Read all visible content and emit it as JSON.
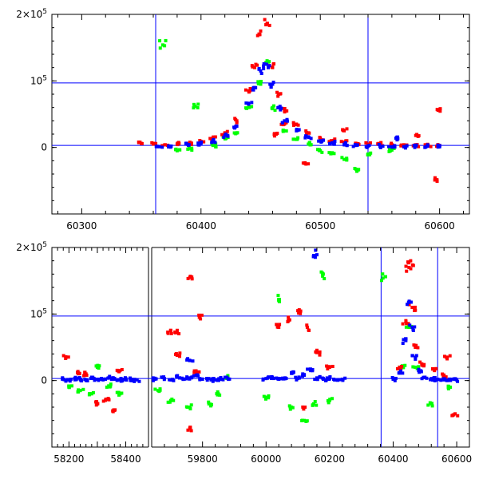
{
  "chart_data": [
    {
      "type": "scatter",
      "panel": "top",
      "xlim": [
        60275,
        60625
      ],
      "ylim": [
        -100000,
        200000
      ],
      "x_ticks": [
        60300,
        60400,
        60500,
        60600
      ],
      "x_tick_labels": [
        "60300",
        "60400",
        "60500",
        "60600"
      ],
      "y_tick_labels": [
        {
          "value": 0,
          "base": "0",
          "exp": ""
        },
        {
          "value": 100000,
          "base": "10",
          "exp": "5"
        },
        {
          "value": 200000,
          "base": "2×10",
          "exp": "5"
        }
      ],
      "vlines": [
        60362,
        60540
      ],
      "hlines": [
        3000,
        97000
      ],
      "peak_x": 60452,
      "series_colors": {
        "red": "#ff0000",
        "green": "#00ff00",
        "blue": "#0000ff"
      },
      "series": [
        {
          "color": "red",
          "points": [
            [
              60350,
              6000
            ],
            [
              60360,
              5000
            ],
            [
              60370,
              4000
            ],
            [
              60380,
              5000
            ],
            [
              60390,
              6000
            ],
            [
              60400,
              9000
            ],
            [
              60410,
              14000
            ],
            [
              60420,
              22000
            ],
            [
              60430,
              40000
            ],
            [
              60440,
              85000
            ],
            [
              60445,
              120000
            ],
            [
              60450,
              175000
            ],
            [
              60455,
              185000
            ],
            [
              60460,
              120000
            ],
            [
              60465,
              80000
            ],
            [
              60470,
              55000
            ],
            [
              60480,
              35000
            ],
            [
              60490,
              22000
            ],
            [
              60500,
              14000
            ],
            [
              60510,
              10000
            ],
            [
              60520,
              8000
            ],
            [
              60530,
              6000
            ],
            [
              60540,
              5000
            ],
            [
              60550,
              5000
            ],
            [
              60560,
              4000
            ],
            [
              60570,
              4000
            ],
            [
              60580,
              3000
            ],
            [
              60590,
              3000
            ],
            [
              60600,
              3000
            ],
            [
              60463,
              20000
            ],
            [
              60470,
              35000
            ],
            [
              60520,
              25000
            ],
            [
              60580,
              18000
            ],
            [
              60598,
              57000
            ],
            [
              60596,
              -49000
            ],
            [
              60488,
              -25000
            ]
          ]
        },
        {
          "color": "green",
          "points": [
            [
              60368,
              154000
            ],
            [
              60395,
              62000
            ],
            [
              60380,
              -5000
            ],
            [
              60390,
              -2000
            ],
            [
              60410,
              3000
            ],
            [
              60420,
              14000
            ],
            [
              60430,
              22000
            ],
            [
              60440,
              60000
            ],
            [
              60450,
              95000
            ],
            [
              60455,
              125000
            ],
            [
              60460,
              60000
            ],
            [
              60470,
              25000
            ],
            [
              60480,
              12000
            ],
            [
              60490,
              5000
            ],
            [
              60500,
              -5000
            ],
            [
              60510,
              -8000
            ],
            [
              60520,
              -18000
            ],
            [
              60530,
              -33000
            ],
            [
              60540,
              -10000
            ],
            [
              60560,
              -4000
            ]
          ]
        },
        {
          "color": "blue",
          "points": [
            [
              60365,
              1000
            ],
            [
              60375,
              2000
            ],
            [
              60390,
              4000
            ],
            [
              60400,
              6000
            ],
            [
              60410,
              10000
            ],
            [
              60420,
              18000
            ],
            [
              60430,
              32000
            ],
            [
              60440,
              65000
            ],
            [
              60445,
              90000
            ],
            [
              60450,
              115000
            ],
            [
              60455,
              125000
            ],
            [
              60460,
              95000
            ],
            [
              60465,
              60000
            ],
            [
              60470,
              40000
            ],
            [
              60480,
              25000
            ],
            [
              60490,
              16000
            ],
            [
              60500,
              10000
            ],
            [
              60510,
              7000
            ],
            [
              60520,
              5000
            ],
            [
              60530,
              3000
            ],
            [
              60540,
              2000
            ],
            [
              60550,
              2000
            ],
            [
              60560,
              1000
            ],
            [
              60570,
              1000
            ],
            [
              60580,
              2000
            ],
            [
              60590,
              2000
            ],
            [
              60600,
              1000
            ],
            [
              60565,
              13000
            ]
          ]
        }
      ]
    },
    {
      "type": "scatter",
      "panel": "bottom",
      "x_break": true,
      "segments": [
        {
          "xlim": [
            58140,
            58480
          ],
          "x_ticks": [
            58200,
            58300,
            58400
          ],
          "x_tick_labels": [
            "58200",
            "",
            "58400"
          ]
        },
        {
          "xlim": [
            59640,
            60640
          ],
          "x_ticks": [
            59800,
            60000,
            60200,
            60400,
            60600
          ],
          "x_tick_labels": [
            "59800",
            "60000",
            "60200",
            "60400",
            "60600"
          ]
        }
      ],
      "ylim": [
        -100000,
        200000
      ],
      "y_tick_labels": [
        {
          "value": 0,
          "base": "0",
          "exp": ""
        },
        {
          "value": 100000,
          "base": "10",
          "exp": "5"
        },
        {
          "value": 200000,
          "base": "2×10",
          "exp": "5"
        }
      ],
      "vlines": [
        60362,
        60540
      ],
      "hlines": [
        3000,
        97000
      ],
      "peak_x": 60452,
      "series_colors": {
        "red": "#ff0000",
        "green": "#00ff00",
        "blue": "#0000ff"
      },
      "series": [
        {
          "color": "red",
          "points": [
            [
              58190,
              35000
            ],
            [
              58230,
              12000
            ],
            [
              58260,
              10000
            ],
            [
              58300,
              -35000
            ],
            [
              58330,
              -28000
            ],
            [
              58360,
              -45000
            ],
            [
              58380,
              15000
            ],
            [
              59700,
              75000
            ],
            [
              59720,
              72000
            ],
            [
              59760,
              155000
            ],
            [
              59790,
              95000
            ],
            [
              59780,
              12000
            ],
            [
              59760,
              -72000
            ],
            [
              59720,
              38000
            ],
            [
              60040,
              80000
            ],
            [
              60070,
              90000
            ],
            [
              60100,
              105000
            ],
            [
              60130,
              80000
            ],
            [
              60160,
              42000
            ],
            [
              60200,
              20000
            ],
            [
              60120,
              -40000
            ],
            [
              60420,
              20000
            ],
            [
              60440,
              90000
            ],
            [
              60450,
              170000
            ],
            [
              60455,
              180000
            ],
            [
              60460,
              110000
            ],
            [
              60470,
              50000
            ],
            [
              60490,
              25000
            ],
            [
              60530,
              15000
            ],
            [
              60560,
              8000
            ],
            [
              60570,
              35000
            ],
            [
              60595,
              -50000
            ]
          ]
        },
        {
          "color": "green",
          "points": [
            [
              58200,
              -10000
            ],
            [
              58240,
              -15000
            ],
            [
              58280,
              -20000
            ],
            [
              58300,
              20000
            ],
            [
              58340,
              -8000
            ],
            [
              58380,
              -20000
            ],
            [
              59660,
              -15000
            ],
            [
              59700,
              -30000
            ],
            [
              59760,
              -40000
            ],
            [
              59820,
              -35000
            ],
            [
              59850,
              -20000
            ],
            [
              59880,
              5000
            ],
            [
              60000,
              -25000
            ],
            [
              60040,
              122000
            ],
            [
              60080,
              -40000
            ],
            [
              60120,
              -60000
            ],
            [
              60150,
              -35000
            ],
            [
              60180,
              160000
            ],
            [
              60200,
              -30000
            ],
            [
              60368,
              154000
            ],
            [
              60430,
              20000
            ],
            [
              60450,
              80000
            ],
            [
              60470,
              20000
            ],
            [
              60520,
              -35000
            ],
            [
              60580,
              -10000
            ]
          ]
        },
        {
          "color": "blue",
          "points": [
            [
              58180,
              2000
            ],
            [
              58200,
              1000
            ],
            [
              58220,
              3000
            ],
            [
              58240,
              2000
            ],
            [
              58260,
              1000
            ],
            [
              58280,
              5000
            ],
            [
              58300,
              2000
            ],
            [
              58320,
              1000
            ],
            [
              58340,
              4000
            ],
            [
              58360,
              2000
            ],
            [
              58380,
              1000
            ],
            [
              58400,
              3000
            ],
            [
              58420,
              2000
            ],
            [
              58440,
              1000
            ],
            [
              59650,
              2000
            ],
            [
              59680,
              3000
            ],
            [
              59700,
              1000
            ],
            [
              59720,
              5000
            ],
            [
              59740,
              2000
            ],
            [
              59760,
              4000
            ],
            [
              59780,
              8000
            ],
            [
              59800,
              2000
            ],
            [
              59820,
              3000
            ],
            [
              59840,
              1000
            ],
            [
              59860,
              2000
            ],
            [
              59880,
              3000
            ],
            [
              59760,
              30000
            ],
            [
              60000,
              3000
            ],
            [
              60020,
              5000
            ],
            [
              60040,
              2000
            ],
            [
              60060,
              4000
            ],
            [
              60080,
              12000
            ],
            [
              60100,
              3000
            ],
            [
              60120,
              8000
            ],
            [
              60140,
              15000
            ],
            [
              60160,
              4000
            ],
            [
              60180,
              2000
            ],
            [
              60200,
              3000
            ],
            [
              60220,
              1000
            ],
            [
              60240,
              2000
            ],
            [
              60150,
              188000
            ],
            [
              60400,
              2000
            ],
            [
              60420,
              12000
            ],
            [
              60440,
              60000
            ],
            [
              60450,
              118000
            ],
            [
              60460,
              80000
            ],
            [
              60470,
              35000
            ],
            [
              60480,
              15000
            ],
            [
              60500,
              5000
            ],
            [
              60520,
              3000
            ],
            [
              60540,
              2000
            ],
            [
              60560,
              1000
            ],
            [
              60580,
              2000
            ],
            [
              60600,
              1000
            ]
          ]
        }
      ]
    }
  ]
}
